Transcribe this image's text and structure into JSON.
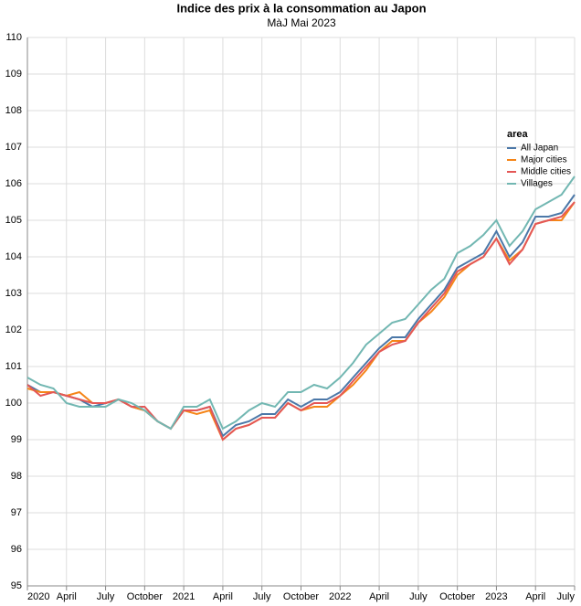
{
  "chart_data": {
    "type": "line",
    "title": "Indice des prix à la consommation au Japon",
    "subtitle": "MàJ Mai 2023",
    "legend_title": "area",
    "legend_position": "right",
    "grid": true,
    "x": [
      "2020-01",
      "2020-02",
      "2020-03",
      "2020-04",
      "2020-05",
      "2020-06",
      "2020-07",
      "2020-08",
      "2020-09",
      "2020-10",
      "2020-11",
      "2020-12",
      "2021-01",
      "2021-02",
      "2021-03",
      "2021-04",
      "2021-05",
      "2021-06",
      "2021-07",
      "2021-08",
      "2021-09",
      "2021-10",
      "2021-11",
      "2021-12",
      "2022-01",
      "2022-02",
      "2022-03",
      "2022-04",
      "2022-05",
      "2022-06",
      "2022-07",
      "2022-08",
      "2022-09",
      "2022-10",
      "2022-11",
      "2022-12",
      "2023-01",
      "2023-02",
      "2023-03",
      "2023-04",
      "2023-05",
      "2023-06",
      "2023-07"
    ],
    "xticks": [
      {
        "value": "2020-01",
        "label": "2020"
      },
      {
        "value": "2020-04",
        "label": "April"
      },
      {
        "value": "2020-07",
        "label": "July"
      },
      {
        "value": "2020-10",
        "label": "October"
      },
      {
        "value": "2021-01",
        "label": "2021"
      },
      {
        "value": "2021-04",
        "label": "April"
      },
      {
        "value": "2021-07",
        "label": "July"
      },
      {
        "value": "2021-10",
        "label": "October"
      },
      {
        "value": "2022-01",
        "label": "2022"
      },
      {
        "value": "2022-04",
        "label": "April"
      },
      {
        "value": "2022-07",
        "label": "July"
      },
      {
        "value": "2022-10",
        "label": "October"
      },
      {
        "value": "2023-01",
        "label": "2023"
      },
      {
        "value": "2023-04",
        "label": "April"
      },
      {
        "value": "2023-07",
        "label": "July"
      }
    ],
    "ylim": [
      95,
      110
    ],
    "yticks": [
      95,
      96,
      97,
      98,
      99,
      100,
      101,
      102,
      103,
      104,
      105,
      106,
      107,
      108,
      109,
      110
    ],
    "series": [
      {
        "name": "All Japan",
        "color": "#4c78a8",
        "values": [
          100.5,
          100.3,
          100.3,
          100.2,
          100.1,
          99.9,
          100.0,
          100.1,
          99.9,
          99.8,
          99.5,
          99.3,
          99.8,
          99.8,
          99.9,
          99.1,
          99.4,
          99.5,
          99.7,
          99.7,
          100.1,
          99.9,
          100.1,
          100.1,
          100.3,
          100.7,
          101.1,
          101.5,
          101.8,
          101.8,
          102.3,
          102.7,
          103.1,
          103.7,
          103.9,
          104.1,
          104.7,
          104.0,
          104.4,
          105.1,
          105.1,
          105.2,
          105.7
        ]
      },
      {
        "name": "Major cities",
        "color": "#f58518",
        "values": [
          100.4,
          100.3,
          100.3,
          100.2,
          100.3,
          100.0,
          100.0,
          100.1,
          99.9,
          99.8,
          99.5,
          99.3,
          99.8,
          99.7,
          99.8,
          99.0,
          99.3,
          99.4,
          99.6,
          99.6,
          100.0,
          99.8,
          99.9,
          99.9,
          100.2,
          100.5,
          100.9,
          101.4,
          101.7,
          101.7,
          102.2,
          102.5,
          102.9,
          103.5,
          103.8,
          104.0,
          104.5,
          103.9,
          104.2,
          104.9,
          105.0,
          105.0,
          105.5
        ]
      },
      {
        "name": "Middle cities",
        "color": "#e45756",
        "values": [
          100.5,
          100.2,
          100.3,
          100.2,
          100.1,
          100.0,
          100.0,
          100.1,
          99.9,
          99.9,
          99.5,
          99.3,
          99.8,
          99.8,
          99.9,
          99.0,
          99.3,
          99.4,
          99.6,
          99.6,
          100.0,
          99.8,
          100.0,
          100.0,
          100.2,
          100.6,
          101.0,
          101.4,
          101.6,
          101.7,
          102.2,
          102.6,
          103.0,
          103.6,
          103.8,
          104.0,
          104.5,
          103.8,
          104.2,
          104.9,
          105.0,
          105.1,
          105.5
        ]
      },
      {
        "name": "Villages",
        "color": "#72b7b2",
        "values": [
          100.7,
          100.5,
          100.4,
          100.0,
          99.9,
          99.9,
          99.9,
          100.1,
          100.0,
          99.8,
          99.5,
          99.3,
          99.9,
          99.9,
          100.1,
          99.3,
          99.5,
          99.8,
          100.0,
          99.9,
          100.3,
          100.3,
          100.5,
          100.4,
          100.7,
          101.1,
          101.6,
          101.9,
          102.2,
          102.3,
          102.7,
          103.1,
          103.4,
          104.1,
          104.3,
          104.6,
          105.0,
          104.3,
          104.7,
          105.3,
          105.5,
          105.7,
          106.2
        ]
      }
    ]
  }
}
